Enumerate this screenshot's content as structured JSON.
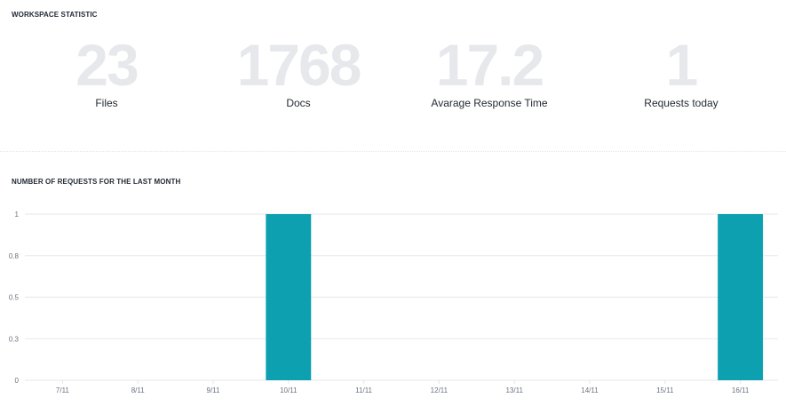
{
  "workspace": {
    "title": "WORKSPACE STATISTIC",
    "stats": [
      {
        "value": "23",
        "label": "Files"
      },
      {
        "value": "1768",
        "label": "Docs"
      },
      {
        "value": "17.2",
        "label": "Avarage Response Time"
      },
      {
        "value": "1",
        "label": "Requests today"
      }
    ]
  },
  "requests": {
    "title": "NUMBER OF REQUESTS FOR THE LAST MONTH"
  },
  "colors": {
    "bar": "#0ca0b0",
    "stat_value": "#e6e8ec",
    "grid": "#e5e7eb"
  },
  "chart_data": {
    "type": "bar",
    "categories": [
      "7/11",
      "8/11",
      "9/11",
      "10/11",
      "11/11",
      "12/11",
      "13/11",
      "14/11",
      "15/11",
      "16/11"
    ],
    "values": [
      0,
      0,
      0,
      1,
      0,
      0,
      0,
      0,
      0,
      1
    ],
    "y_ticks": [
      "0",
      "0.3",
      "0.5",
      "0.8",
      "1"
    ],
    "y_tick_values": [
      0,
      0.25,
      0.5,
      0.75,
      1
    ],
    "ylim": [
      0,
      1
    ],
    "grid": true,
    "legend": "none"
  }
}
